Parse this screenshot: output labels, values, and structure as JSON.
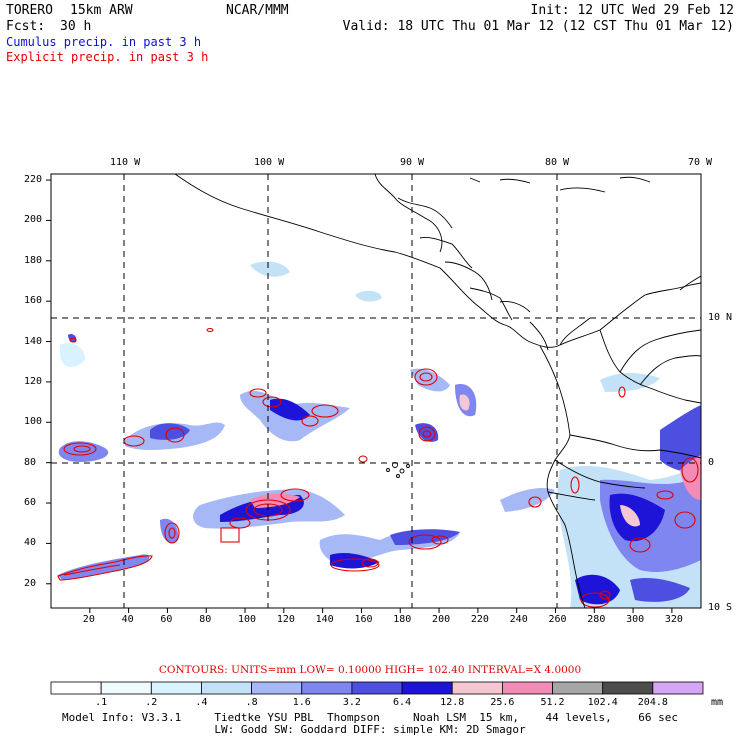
{
  "header": {
    "model": "TORERO",
    "resolution": "15km ARW",
    "org": "NCAR/MMM",
    "init": "Init: 12 UTC Wed 29 Feb 12",
    "fcst_label": "Fcst:",
    "fcst_value": "30 h",
    "valid": "Valid: 18 UTC Thu 01 Mar 12 (12 CST Thu 01 Mar 12)",
    "line1": "Cumulus precip. in past 3 h",
    "line1_color": "#1010d0",
    "line2": "Explicit precip. in past 3 h",
    "line2_color": "#e00000"
  },
  "map": {
    "lon_labels": [
      "110 W",
      "100 W",
      "90 W",
      "80 W",
      "70 W"
    ],
    "lat_labels": [
      "10 N",
      "0",
      "10 S"
    ],
    "x_ticks": [
      "20",
      "40",
      "60",
      "80",
      "100",
      "120",
      "140",
      "160",
      "180",
      "200",
      "220",
      "240",
      "260",
      "280",
      "300",
      "320"
    ],
    "y_ticks": [
      "20",
      "40",
      "60",
      "80",
      "100",
      "120",
      "140",
      "160",
      "180",
      "200",
      "220"
    ],
    "x_range": [
      0,
      335
    ],
    "y_range": [
      8,
      223
    ]
  },
  "footer": {
    "contours_label": "CONTOURS:  UNITS=mm  LOW= 0.10000       HIGH=  102.40       INTERVAL=X  4.0000",
    "colorbar_values": [
      ".1",
      ".2",
      ".4",
      ".8",
      "1.6",
      "3.2",
      "6.4",
      "12.8",
      "25.6",
      "51.2",
      "102.4",
      "204.8"
    ],
    "colorbar_unit": "mm",
    "colorbar_colors": [
      "#ffffff",
      "#f0fbff",
      "#d9f2ff",
      "#c4e2f7",
      "#a6b8f5",
      "#7f86ef",
      "#4c4fe0",
      "#1d14d8",
      "#f5c7d2",
      "#f28bb5",
      "#a6a6a6",
      "#4d4d4d",
      "#d6a6f5"
    ],
    "model_info_1": "Model Info: V3.3.1     Tiedtke YSU PBL  Thompson     Noah LSM  15 km,    44 levels,    66 sec",
    "model_info_2": "LW: Godd SW: Goddard DIFF: simple KM: 2D Smagor"
  }
}
